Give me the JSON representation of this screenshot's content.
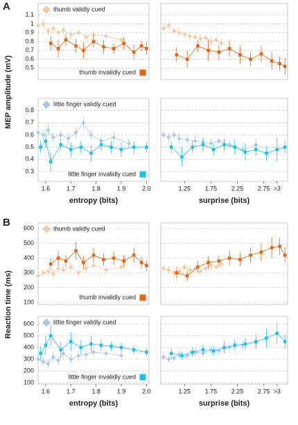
{
  "figure": {
    "labels": [
      "A",
      "B"
    ],
    "ylabels": [
      "MEP amplitude (mV)",
      "Reaction time (ms)"
    ]
  },
  "chart_data": [
    {
      "type": "scatter",
      "ylim": [
        0.37,
        1.23
      ],
      "yticks": [
        0.5,
        0.6,
        0.7,
        0.8,
        0.9,
        1,
        1.1
      ],
      "xlim": [
        1.57,
        2.01
      ],
      "series": [
        {
          "name": "thumb validly cued",
          "color": "#f6c9a0",
          "marker": "diamond",
          "legend": "upper left",
          "x": [
            1.57,
            1.59,
            1.61,
            1.63,
            1.65,
            1.67,
            1.7,
            1.73,
            1.76,
            1.79,
            1.84,
            1.9
          ],
          "values": [
            0.98,
            1.0,
            0.92,
            0.95,
            0.9,
            0.93,
            0.88,
            0.9,
            0.85,
            0.88,
            0.86,
            0.82
          ],
          "errors": [
            0.05,
            0.06,
            0.05,
            0.05,
            0.04,
            0.05,
            0.05,
            0.04,
            0.05,
            0.05,
            0.04,
            0.05
          ]
        },
        {
          "name": "thumb invalidly cued",
          "color": "#e8620f",
          "marker": "square",
          "legend": "lower right",
          "x": [
            1.62,
            1.65,
            1.68,
            1.72,
            1.75,
            1.79,
            1.83,
            1.87,
            1.91,
            1.95,
            1.98,
            2.0
          ],
          "values": [
            0.78,
            0.72,
            0.82,
            0.75,
            0.7,
            0.8,
            0.74,
            0.72,
            0.78,
            0.68,
            0.75,
            0.72
          ],
          "errors": [
            0.08,
            0.1,
            0.07,
            0.08,
            0.09,
            0.07,
            0.08,
            0.06,
            0.07,
            0.08,
            0.06,
            0.07
          ]
        }
      ]
    },
    {
      "type": "scatter",
      "ylim": [
        0.37,
        1.23
      ],
      "xlim": [
        0.8,
        3.2
      ],
      "series": [
        {
          "color": "#f6c9a0",
          "marker": "diamond",
          "x": [
            0.85,
            0.95,
            1.05,
            1.15,
            1.25,
            1.35,
            1.45,
            1.55,
            1.65,
            1.75,
            1.85,
            1.95
          ],
          "values": [
            0.95,
            0.98,
            0.92,
            0.9,
            0.88,
            0.86,
            0.85,
            0.83,
            0.84,
            0.8,
            0.82,
            0.78
          ],
          "errors": [
            0.04,
            0.05,
            0.04,
            0.05,
            0.04,
            0.05,
            0.04,
            0.05,
            0.04,
            0.05,
            0.04,
            0.05
          ]
        },
        {
          "color": "#e8620f",
          "marker": "square",
          "x": [
            1.1,
            1.3,
            1.5,
            1.7,
            1.9,
            2.1,
            2.3,
            2.5,
            2.7,
            2.9,
            3.05,
            3.15
          ],
          "values": [
            0.65,
            0.6,
            0.75,
            0.7,
            0.68,
            0.72,
            0.65,
            0.6,
            0.66,
            0.58,
            0.55,
            0.52
          ],
          "errors": [
            0.08,
            0.1,
            0.07,
            0.12,
            0.08,
            0.09,
            0.1,
            0.08,
            0.09,
            0.1,
            0.08,
            0.1
          ]
        }
      ]
    },
    {
      "type": "scatter",
      "ylim": [
        0.22,
        0.9
      ],
      "yticks": [
        0.3,
        0.4,
        0.5,
        0.6,
        0.7,
        0.8
      ],
      "xlim": [
        1.57,
        2.01
      ],
      "series": [
        {
          "name": "little finger validly cued",
          "color": "#a9c7f0",
          "marker": "diamond",
          "legend": "upper left",
          "x": [
            1.57,
            1.59,
            1.61,
            1.63,
            1.66,
            1.69,
            1.72,
            1.75,
            1.78,
            1.82,
            1.87,
            1.93
          ],
          "values": [
            0.62,
            0.6,
            0.64,
            0.58,
            0.6,
            0.57,
            0.62,
            0.7,
            0.6,
            0.55,
            0.58,
            0.53
          ],
          "errors": [
            0.04,
            0.04,
            0.05,
            0.04,
            0.04,
            0.05,
            0.04,
            0.05,
            0.04,
            0.04,
            0.05,
            0.04
          ]
        },
        {
          "name": "little finger invalidly cued",
          "color": "#1ec0ea",
          "marker": "square",
          "legend": "lower right",
          "x": [
            1.58,
            1.6,
            1.62,
            1.66,
            1.7,
            1.74,
            1.78,
            1.82,
            1.86,
            1.9,
            1.95,
            2.0
          ],
          "values": [
            0.5,
            0.55,
            0.38,
            0.52,
            0.48,
            0.5,
            0.45,
            0.52,
            0.5,
            0.48,
            0.5,
            0.5
          ],
          "errors": [
            0.05,
            0.06,
            0.08,
            0.05,
            0.06,
            0.05,
            0.07,
            0.05,
            0.05,
            0.06,
            0.05,
            0.04
          ]
        }
      ],
      "xticks": [
        1.6,
        1.7,
        1.8,
        1.9,
        {
          "value": 2,
          "label": "2.0"
        }
      ],
      "xlabel": "entropy (bits)"
    },
    {
      "type": "scatter",
      "ylim": [
        0.22,
        0.9
      ],
      "xlim": [
        0.8,
        3.2
      ],
      "series": [
        {
          "color": "#a9c7f0",
          "marker": "diamond",
          "x": [
            0.85,
            0.95,
            1.05,
            1.15,
            1.3,
            1.45,
            1.6,
            1.75,
            1.9,
            2.1,
            2.35,
            2.6
          ],
          "values": [
            0.6,
            0.58,
            0.6,
            0.57,
            0.56,
            0.55,
            0.54,
            0.53,
            0.55,
            0.52,
            0.48,
            0.52
          ],
          "errors": [
            0.03,
            0.04,
            0.03,
            0.04,
            0.03,
            0.04,
            0.03,
            0.04,
            0.03,
            0.04,
            0.06,
            0.05
          ]
        },
        {
          "color": "#1ec0ea",
          "marker": "square",
          "x": [
            1.0,
            1.2,
            1.4,
            1.6,
            1.8,
            2.0,
            2.2,
            2.4,
            2.6,
            2.8,
            3.0,
            3.15
          ],
          "values": [
            0.5,
            0.42,
            0.5,
            0.52,
            0.48,
            0.52,
            0.5,
            0.46,
            0.48,
            0.45,
            0.48,
            0.5
          ],
          "errors": [
            0.05,
            0.08,
            0.05,
            0.06,
            0.05,
            0.05,
            0.06,
            0.07,
            0.05,
            0.06,
            0.1,
            0.05
          ]
        }
      ],
      "xticks": [
        1.25,
        1.75,
        2.25,
        2.75,
        {
          "value": 3,
          "label": ">3"
        }
      ],
      "xlabel": "surprise (bits)"
    },
    {
      "type": "scatter",
      "ylim": [
        86,
        638
      ],
      "yticks": [
        100,
        200,
        300,
        400,
        500,
        600
      ],
      "xlim": [
        1.57,
        2.01
      ],
      "series": [
        {
          "name": "thumb validly cued",
          "color": "#f6c9a0",
          "marker": "diamond",
          "legend": "upper left",
          "x": [
            1.57,
            1.59,
            1.61,
            1.63,
            1.65,
            1.67,
            1.7,
            1.73,
            1.76,
            1.79,
            1.84,
            1.9
          ],
          "values": [
            280,
            300,
            310,
            290,
            330,
            320,
            340,
            300,
            330,
            350,
            320,
            340
          ],
          "errors": [
            30,
            25,
            30,
            35,
            30,
            25,
            30,
            40,
            30,
            25,
            30,
            30
          ]
        },
        {
          "name": "thumb invalidly cued",
          "color": "#e8620f",
          "marker": "square",
          "legend": "lower right",
          "x": [
            1.62,
            1.65,
            1.68,
            1.72,
            1.75,
            1.79,
            1.83,
            1.87,
            1.91,
            1.95,
            1.98,
            2.0
          ],
          "values": [
            360,
            400,
            380,
            450,
            370,
            420,
            390,
            400,
            380,
            420,
            370,
            350
          ],
          "errors": [
            40,
            50,
            40,
            60,
            45,
            50,
            40,
            45,
            40,
            50,
            40,
            35
          ]
        }
      ]
    },
    {
      "type": "scatter",
      "ylim": [
        86,
        638
      ],
      "xlim": [
        0.8,
        3.2
      ],
      "series": [
        {
          "color": "#f6c9a0",
          "marker": "diamond",
          "x": [
            0.85,
            0.95,
            1.05,
            1.15,
            1.25,
            1.35,
            1.45,
            1.55,
            1.65,
            1.75,
            1.85,
            1.95
          ],
          "values": [
            330,
            320,
            300,
            310,
            340,
            320,
            330,
            310,
            330,
            350,
            340,
            360
          ],
          "errors": [
            25,
            30,
            25,
            30,
            25,
            30,
            25,
            30,
            25,
            30,
            25,
            30
          ]
        },
        {
          "color": "#e8620f",
          "marker": "square",
          "x": [
            1.1,
            1.3,
            1.5,
            1.7,
            1.9,
            2.1,
            2.3,
            2.5,
            2.7,
            2.9,
            3.05,
            3.15
          ],
          "values": [
            300,
            280,
            340,
            370,
            380,
            400,
            390,
            420,
            440,
            470,
            480,
            420
          ],
          "errors": [
            40,
            35,
            40,
            45,
            40,
            50,
            45,
            50,
            60,
            70,
            60,
            50
          ]
        }
      ]
    },
    {
      "type": "scatter",
      "ylim": [
        88,
        665
      ],
      "yticks": [
        100,
        200,
        300,
        400,
        500,
        600
      ],
      "xlim": [
        1.57,
        2.01
      ],
      "series": [
        {
          "name": "little finger validly cued",
          "color": "#a9c7f0",
          "marker": "diamond",
          "legend": "upper left",
          "x": [
            1.57,
            1.59,
            1.61,
            1.63,
            1.65,
            1.67,
            1.7,
            1.73,
            1.76,
            1.79,
            1.84,
            1.9
          ],
          "values": [
            300,
            280,
            260,
            320,
            290,
            350,
            300,
            330,
            340,
            360,
            350,
            330
          ],
          "errors": [
            40,
            35,
            40,
            45,
            40,
            50,
            40,
            45,
            40,
            35,
            30,
            30
          ]
        },
        {
          "name": "little finger invalidly cued",
          "color": "#1ec0ea",
          "marker": "square",
          "legend": "lower right",
          "x": [
            1.58,
            1.6,
            1.62,
            1.66,
            1.7,
            1.74,
            1.78,
            1.82,
            1.86,
            1.9,
            1.95,
            2.0
          ],
          "values": [
            350,
            420,
            500,
            380,
            450,
            400,
            430,
            420,
            410,
            400,
            380,
            360
          ],
          "errors": [
            60,
            80,
            90,
            70,
            80,
            60,
            70,
            50,
            40,
            40,
            35,
            30
          ]
        }
      ],
      "xticks": [
        1.6,
        1.7,
        1.8,
        1.9,
        {
          "value": 2,
          "label": "2.0"
        }
      ],
      "xlabel": "entropy (bits)"
    },
    {
      "type": "scatter",
      "ylim": [
        88,
        665
      ],
      "xlim": [
        0.8,
        3.2
      ],
      "series": [
        {
          "color": "#a9c7f0",
          "marker": "diamond",
          "x": [
            0.85,
            0.95,
            1.05,
            1.15,
            1.3,
            1.45,
            1.6,
            1.75,
            1.9,
            2.1,
            2.35,
            2.6
          ],
          "values": [
            320,
            300,
            310,
            340,
            330,
            360,
            350,
            380,
            370,
            400,
            420,
            440
          ],
          "errors": [
            30,
            25,
            30,
            35,
            30,
            35,
            30,
            40,
            35,
            40,
            45,
            50
          ]
        },
        {
          "color": "#1ec0ea",
          "marker": "square",
          "x": [
            1.0,
            1.2,
            1.4,
            1.6,
            1.8,
            2.0,
            2.2,
            2.4,
            2.6,
            2.8,
            3.0,
            3.15
          ],
          "values": [
            350,
            330,
            360,
            380,
            370,
            400,
            420,
            430,
            450,
            480,
            520,
            450
          ],
          "errors": [
            40,
            35,
            40,
            45,
            40,
            50,
            45,
            50,
            60,
            80,
            90,
            60
          ]
        }
      ],
      "xticks": [
        1.25,
        1.75,
        2.25,
        2.75,
        {
          "value": 3,
          "label": ">3"
        }
      ],
      "xlabel": "surprise (bits)"
    }
  ]
}
